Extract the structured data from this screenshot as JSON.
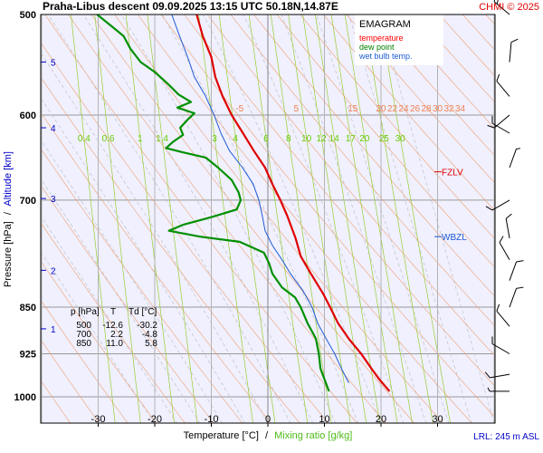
{
  "header": {
    "title": "Praha-Libus   descent   09.09.2025 13:15 UTC   50.18N,14.87E",
    "credit": "CHMI © 2025"
  },
  "legend": {
    "title": "EMAGRAM",
    "items": [
      {
        "label": "temperature",
        "color": "#ff0000"
      },
      {
        "label": "dew point",
        "color": "#008000"
      },
      {
        "label": "wet bulb temp.",
        "color": "#1e5ad2"
      }
    ]
  },
  "colors": {
    "temperature": "#e00000",
    "dewpoint": "#009000",
    "wetbulb": "#1e5ad2",
    "plot_bg": "#f0f0ff",
    "isotherm": "#b4b4b4",
    "dry_adiabat": "#f0a070",
    "mixing_ratio": "#9acd32",
    "moist_adiabat": "#bbbbbb",
    "altitude_axis": "#0000c8"
  },
  "axis_labels": {
    "x_temperature": "Temperature [°C]",
    "x_separator": "/",
    "x_mixing": "Mixing ratio [g/kg]",
    "y_pressure": "Pressure [hPa]",
    "y_separator": "/",
    "y_altitude": "Altitude [km]"
  },
  "levels": {
    "fzlv": "FZLV",
    "wbzl": "WBZL",
    "lrl": "LRL: 245 m ASL"
  },
  "table": {
    "headers": [
      "p [hPa]",
      "T",
      "Td [°C]"
    ],
    "rows": [
      [
        "500",
        "-12.6",
        "-30.2"
      ],
      [
        "700",
        "2.2",
        "-4.8"
      ],
      [
        "850",
        "11.0",
        "5.8"
      ]
    ]
  },
  "chart_data": {
    "type": "line",
    "title": "EMAGRAM",
    "xlabel": "Temperature [°C]  /  Mixing ratio [g/kg]",
    "ylabel": "Pressure [hPa]  /  Altitude [km]",
    "x_ticks": [
      -30,
      -20,
      -10,
      0,
      10,
      20,
      30
    ],
    "y_ticks": [
      500,
      600,
      700,
      850,
      925,
      1000
    ],
    "y_scale": "log",
    "xlim": [
      -39,
      40
    ],
    "ylim": [
      1000,
      500
    ],
    "altitude_km_ticks": [
      {
        "label": "1",
        "p": 884
      },
      {
        "label": "2",
        "p": 795
      },
      {
        "label": "3",
        "p": 698
      },
      {
        "label": "4",
        "p": 614
      },
      {
        "label": "5",
        "p": 545
      }
    ],
    "dry_adiabat_labels": [
      -5,
      5,
      15,
      20,
      22,
      24,
      26,
      28,
      30,
      32,
      34
    ],
    "mixing_ratio_labels": [
      0.4,
      0.6,
      1,
      1.4,
      3,
      4,
      6,
      8,
      10,
      12,
      14,
      17,
      20,
      25,
      30
    ],
    "freezing_level_hpa": 665,
    "wet_bulb_zero_hpa": 748,
    "series": [
      {
        "name": "temperature",
        "points": [
          {
            "p": 990,
            "t": 21.5
          },
          {
            "p": 970,
            "t": 19.8
          },
          {
            "p": 950,
            "t": 18.3
          },
          {
            "p": 925,
            "t": 16.5
          },
          {
            "p": 900,
            "t": 14.3
          },
          {
            "p": 875,
            "t": 12.4
          },
          {
            "p": 850,
            "t": 11.0
          },
          {
            "p": 830,
            "t": 9.8
          },
          {
            "p": 800,
            "t": 7.6
          },
          {
            "p": 775,
            "t": 5.8
          },
          {
            "p": 750,
            "t": 4.9
          },
          {
            "p": 720,
            "t": 3.4
          },
          {
            "p": 700,
            "t": 2.2
          },
          {
            "p": 680,
            "t": 0.8
          },
          {
            "p": 660,
            "t": -0.5
          },
          {
            "p": 640,
            "t": -2.5
          },
          {
            "p": 620,
            "t": -4.4
          },
          {
            "p": 600,
            "t": -6.4
          },
          {
            "p": 580,
            "t": -8.0
          },
          {
            "p": 560,
            "t": -9.3
          },
          {
            "p": 540,
            "t": -10.0
          },
          {
            "p": 520,
            "t": -11.5
          },
          {
            "p": 500,
            "t": -12.6
          }
        ]
      },
      {
        "name": "dew point",
        "points": [
          {
            "p": 990,
            "t": 10.8
          },
          {
            "p": 950,
            "t": 9.3
          },
          {
            "p": 925,
            "t": 9.0
          },
          {
            "p": 900,
            "t": 8.5
          },
          {
            "p": 875,
            "t": 7.0
          },
          {
            "p": 850,
            "t": 5.8
          },
          {
            "p": 835,
            "t": 4.8
          },
          {
            "p": 820,
            "t": 2.5
          },
          {
            "p": 800,
            "t": 0.8
          },
          {
            "p": 785,
            "t": 0.2
          },
          {
            "p": 770,
            "t": -0.7
          },
          {
            "p": 755,
            "t": -5.0
          },
          {
            "p": 748,
            "t": -12.0
          },
          {
            "p": 740,
            "t": -17.5
          },
          {
            "p": 732,
            "t": -15.0
          },
          {
            "p": 722,
            "t": -10.0
          },
          {
            "p": 712,
            "t": -5.5
          },
          {
            "p": 700,
            "t": -4.8
          },
          {
            "p": 690,
            "t": -5.2
          },
          {
            "p": 675,
            "t": -6.4
          },
          {
            "p": 660,
            "t": -8.8
          },
          {
            "p": 648,
            "t": -11.0
          },
          {
            "p": 642,
            "t": -15.0
          },
          {
            "p": 637,
            "t": -18.0
          },
          {
            "p": 630,
            "t": -16.8
          },
          {
            "p": 622,
            "t": -15.0
          },
          {
            "p": 614,
            "t": -15.5
          },
          {
            "p": 605,
            "t": -14.2
          },
          {
            "p": 598,
            "t": -13.0
          },
          {
            "p": 592,
            "t": -16.0
          },
          {
            "p": 586,
            "t": -13.6
          },
          {
            "p": 578,
            "t": -15.8
          },
          {
            "p": 568,
            "t": -17.5
          },
          {
            "p": 555,
            "t": -20.0
          },
          {
            "p": 545,
            "t": -22.5
          },
          {
            "p": 532,
            "t": -24.3
          },
          {
            "p": 520,
            "t": -25.5
          },
          {
            "p": 510,
            "t": -27.8
          },
          {
            "p": 500,
            "t": -30.2
          }
        ]
      },
      {
        "name": "wet bulb temp.",
        "points": [
          {
            "p": 975,
            "t": 14.3
          },
          {
            "p": 950,
            "t": 13.0
          },
          {
            "p": 925,
            "t": 11.8
          },
          {
            "p": 900,
            "t": 10.3
          },
          {
            "p": 875,
            "t": 8.8
          },
          {
            "p": 850,
            "t": 7.8
          },
          {
            "p": 825,
            "t": 6.2
          },
          {
            "p": 800,
            "t": 4.0
          },
          {
            "p": 780,
            "t": 2.5
          },
          {
            "p": 760,
            "t": 0.8
          },
          {
            "p": 740,
            "t": -0.5
          },
          {
            "p": 720,
            "t": -1.0
          },
          {
            "p": 700,
            "t": -1.6
          },
          {
            "p": 680,
            "t": -2.6
          },
          {
            "p": 660,
            "t": -4.5
          },
          {
            "p": 640,
            "t": -6.8
          },
          {
            "p": 620,
            "t": -8.3
          },
          {
            "p": 600,
            "t": -9.5
          },
          {
            "p": 580,
            "t": -11.0
          },
          {
            "p": 560,
            "t": -13.0
          },
          {
            "p": 540,
            "t": -14.2
          },
          {
            "p": 520,
            "t": -15.6
          },
          {
            "p": 500,
            "t": -17.0
          }
        ]
      }
    ],
    "wind_barbs": [
      {
        "p": 500,
        "dir": 310,
        "kt": 15
      },
      {
        "p": 545,
        "dir": 5,
        "kt": 10
      },
      {
        "p": 580,
        "dir": 320,
        "kt": 10
      },
      {
        "p": 600,
        "dir": 230,
        "kt": 10
      },
      {
        "p": 620,
        "dir": 300,
        "kt": 10
      },
      {
        "p": 660,
        "dir": 20,
        "kt": 5
      },
      {
        "p": 700,
        "dir": 240,
        "kt": 10
      },
      {
        "p": 750,
        "dir": 350,
        "kt": 10
      },
      {
        "p": 780,
        "dir": 330,
        "kt": 10
      },
      {
        "p": 810,
        "dir": 20,
        "kt": 10
      },
      {
        "p": 850,
        "dir": 20,
        "kt": 10
      },
      {
        "p": 880,
        "dir": 320,
        "kt": 10
      },
      {
        "p": 925,
        "dir": 300,
        "kt": 10
      },
      {
        "p": 960,
        "dir": 260,
        "kt": 10
      },
      {
        "p": 990,
        "dir": 270,
        "kt": 5
      }
    ]
  }
}
